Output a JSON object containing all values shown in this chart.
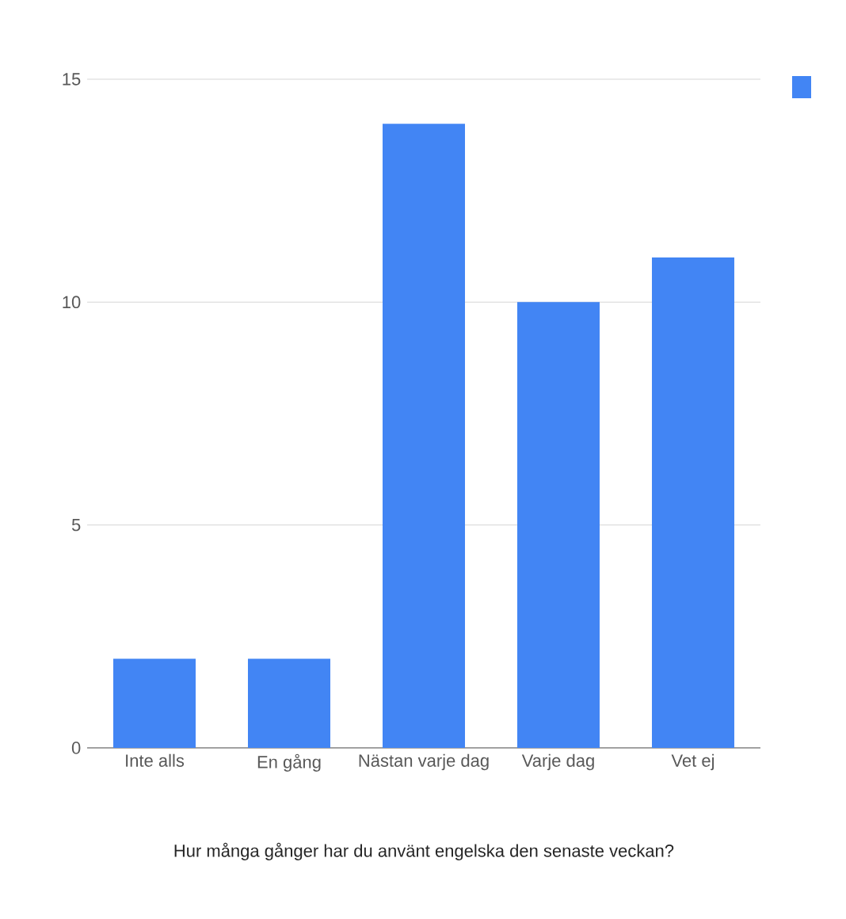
{
  "chart_data": {
    "type": "bar",
    "xlabel": "Hur många gånger har du använt engelska den senaste veckan?",
    "categories": [
      "Inte alls",
      "En gång",
      "Nästan varje dag",
      "Varje dag",
      "Vet ej"
    ],
    "series": [
      {
        "color": "#4285f4",
        "values": [
          2,
          2,
          14,
          10,
          11
        ]
      }
    ],
    "ylim": [
      0,
      15
    ],
    "yticks": [
      0,
      5,
      10,
      15
    ],
    "grid": "y"
  }
}
